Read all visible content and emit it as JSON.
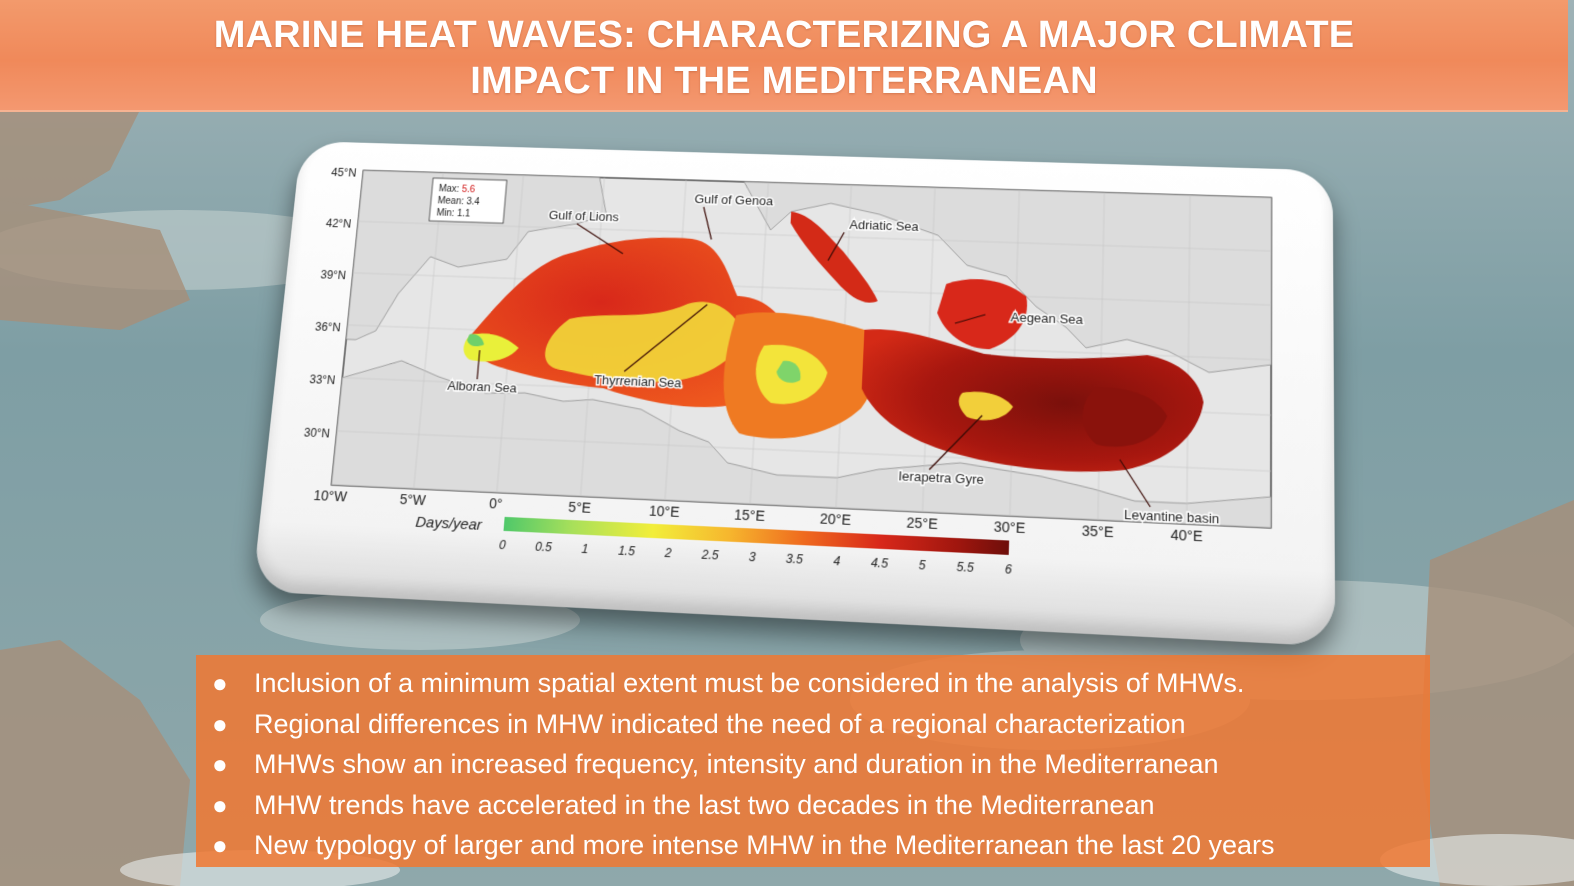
{
  "title": {
    "line1": "MARINE HEAT WAVES: CHARACTERIZING A MAJOR CLIMATE",
    "line2": "IMPACT IN THE MEDITERRANEAN"
  },
  "map": {
    "stats": {
      "max_label": "Max:",
      "max_value": "5.6",
      "mean": "Mean: 3.4",
      "min": "Min: 1.1"
    },
    "lat_labels": [
      "45°N",
      "42°N",
      "39°N",
      "36°N",
      "33°N",
      "30°N"
    ],
    "lon_labels": [
      "10°W",
      "5°W",
      "0°",
      "5°E",
      "10°E",
      "15°E",
      "20°E",
      "25°E",
      "30°E",
      "35°E",
      "40°E"
    ],
    "regions": [
      "Gulf of Lions",
      "Gulf of Genoa",
      "Adriatic Sea",
      "Aegean Sea",
      "Thyrrenian Sea",
      "Alboran Sea",
      "Ierapetra Gyre",
      "Levantine basin"
    ],
    "colorbar": {
      "label": "Days/year",
      "ticks": [
        "0",
        "0.5",
        "1",
        "1.5",
        "2",
        "2.5",
        "3",
        "3.5",
        "4",
        "4.5",
        "5",
        "5.5",
        "6"
      ],
      "colors": [
        "#4fc86a",
        "#a9e05a",
        "#f2ee3a",
        "#f6b72e",
        "#ef6a1e",
        "#d8281a",
        "#a0160e",
        "#6e0e0a"
      ]
    }
  },
  "findings": [
    "Inclusion of a minimum spatial extent must be considered in the analysis of MHWs.",
    "Regional differences in MHW indicated the need of a regional characterization",
    "MHWs show an increased frequency, intensity and duration in the Mediterranean",
    "MHW trends have accelerated in the last two decades in the Mediterranean",
    "New typology of larger and more intense MHW in the Mediterranean the last 20 years"
  ],
  "bullet_glyph": "●"
}
